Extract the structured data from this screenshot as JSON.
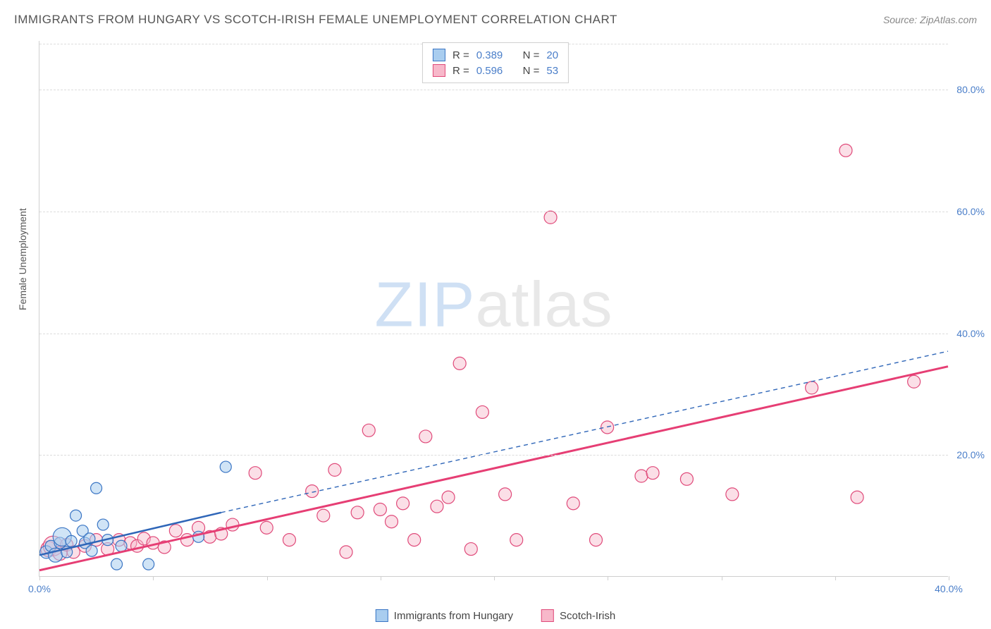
{
  "title": "IMMIGRANTS FROM HUNGARY VS SCOTCH-IRISH FEMALE UNEMPLOYMENT CORRELATION CHART",
  "source": "Source: ZipAtlas.com",
  "ylabel": "Female Unemployment",
  "watermark_zip": "ZIP",
  "watermark_atlas": "atlas",
  "chart": {
    "type": "scatter",
    "xlim": [
      0,
      40
    ],
    "ylim": [
      0,
      88
    ],
    "yticks": [
      20,
      40,
      60,
      80
    ],
    "ytick_labels": [
      "20.0%",
      "40.0%",
      "60.0%",
      "80.0%"
    ],
    "xticks": [
      0,
      5,
      10,
      15,
      20,
      25,
      30,
      35,
      40
    ],
    "xtick_labels_shown": {
      "0": "0.0%",
      "40": "40.0%"
    },
    "grid_color": "#dcdcdc",
    "background_color": "#ffffff",
    "axis_color": "#cfcfcf",
    "tick_label_color": "#4a7ec9",
    "label_fontsize": 14
  },
  "series": {
    "hungary": {
      "label": "Immigrants from Hungary",
      "fill_color": "#a9cdef",
      "fill_opacity": 0.55,
      "stroke_color": "#3a75c4",
      "marker_radius_base": 8,
      "R": "0.389",
      "N": "20",
      "line": {
        "x1": 0,
        "y1": 3.5,
        "x2": 8,
        "y2": 10.5,
        "dash_x2": 40,
        "dash_y2": 37,
        "color": "#2f66b8",
        "width": 2.5
      },
      "points": [
        {
          "x": 0.3,
          "y": 4.0,
          "r": 9
        },
        {
          "x": 0.5,
          "y": 5.0,
          "r": 8
        },
        {
          "x": 0.7,
          "y": 3.5,
          "r": 10
        },
        {
          "x": 0.9,
          "y": 5.5,
          "r": 8
        },
        {
          "x": 1.0,
          "y": 6.5,
          "r": 13
        },
        {
          "x": 1.2,
          "y": 4.0,
          "r": 8
        },
        {
          "x": 1.4,
          "y": 5.8,
          "r": 8
        },
        {
          "x": 1.6,
          "y": 10.0,
          "r": 8
        },
        {
          "x": 1.9,
          "y": 7.5,
          "r": 8
        },
        {
          "x": 2.0,
          "y": 5.5,
          "r": 8
        },
        {
          "x": 2.2,
          "y": 6.2,
          "r": 8
        },
        {
          "x": 2.3,
          "y": 4.2,
          "r": 8
        },
        {
          "x": 2.5,
          "y": 14.5,
          "r": 8
        },
        {
          "x": 2.8,
          "y": 8.5,
          "r": 8
        },
        {
          "x": 3.0,
          "y": 6.0,
          "r": 8
        },
        {
          "x": 3.4,
          "y": 2.0,
          "r": 8
        },
        {
          "x": 3.6,
          "y": 5.0,
          "r": 8
        },
        {
          "x": 4.8,
          "y": 2.0,
          "r": 8
        },
        {
          "x": 7.0,
          "y": 6.5,
          "r": 8
        },
        {
          "x": 8.2,
          "y": 18.0,
          "r": 8
        }
      ]
    },
    "scotch_irish": {
      "label": "Scotch-Irish",
      "fill_color": "#f7b8ca",
      "fill_opacity": 0.45,
      "stroke_color": "#e04a7a",
      "marker_radius_base": 9,
      "R": "0.596",
      "N": "53",
      "line": {
        "x1": 0,
        "y1": 1.0,
        "x2": 40,
        "y2": 34.5,
        "color": "#e63e74",
        "width": 3
      },
      "points": [
        {
          "x": 0.4,
          "y": 4.5,
          "r": 11
        },
        {
          "x": 0.6,
          "y": 5.0,
          "r": 14
        },
        {
          "x": 0.9,
          "y": 3.8,
          "r": 10
        },
        {
          "x": 1.2,
          "y": 5.2,
          "r": 9
        },
        {
          "x": 1.5,
          "y": 4.0,
          "r": 9
        },
        {
          "x": 2.0,
          "y": 5.0,
          "r": 9
        },
        {
          "x": 2.5,
          "y": 6.0,
          "r": 9
        },
        {
          "x": 3.0,
          "y": 4.5,
          "r": 9
        },
        {
          "x": 3.5,
          "y": 6.0,
          "r": 9
        },
        {
          "x": 4.0,
          "y": 5.5,
          "r": 9
        },
        {
          "x": 4.3,
          "y": 5.0,
          "r": 9
        },
        {
          "x": 4.6,
          "y": 6.2,
          "r": 9
        },
        {
          "x": 5.0,
          "y": 5.5,
          "r": 9
        },
        {
          "x": 5.5,
          "y": 4.8,
          "r": 9
        },
        {
          "x": 6.0,
          "y": 7.5,
          "r": 9
        },
        {
          "x": 6.5,
          "y": 6.0,
          "r": 9
        },
        {
          "x": 7.0,
          "y": 8.0,
          "r": 9
        },
        {
          "x": 7.5,
          "y": 6.5,
          "r": 9
        },
        {
          "x": 8.0,
          "y": 7.0,
          "r": 9
        },
        {
          "x": 8.5,
          "y": 8.5,
          "r": 9
        },
        {
          "x": 9.5,
          "y": 17.0,
          "r": 9
        },
        {
          "x": 10.0,
          "y": 8.0,
          "r": 9
        },
        {
          "x": 11.0,
          "y": 6.0,
          "r": 9
        },
        {
          "x": 12.0,
          "y": 14.0,
          "r": 9
        },
        {
          "x": 12.5,
          "y": 10.0,
          "r": 9
        },
        {
          "x": 13.0,
          "y": 17.5,
          "r": 9
        },
        {
          "x": 13.5,
          "y": 4.0,
          "r": 9
        },
        {
          "x": 14.0,
          "y": 10.5,
          "r": 9
        },
        {
          "x": 14.5,
          "y": 24.0,
          "r": 9
        },
        {
          "x": 15.0,
          "y": 11.0,
          "r": 9
        },
        {
          "x": 15.5,
          "y": 9.0,
          "r": 9
        },
        {
          "x": 16.0,
          "y": 12.0,
          "r": 9
        },
        {
          "x": 16.5,
          "y": 6.0,
          "r": 9
        },
        {
          "x": 17.0,
          "y": 23.0,
          "r": 9
        },
        {
          "x": 17.5,
          "y": 11.5,
          "r": 9
        },
        {
          "x": 18.0,
          "y": 13.0,
          "r": 9
        },
        {
          "x": 18.5,
          "y": 35.0,
          "r": 9
        },
        {
          "x": 19.0,
          "y": 4.5,
          "r": 9
        },
        {
          "x": 19.5,
          "y": 27.0,
          "r": 9
        },
        {
          "x": 20.5,
          "y": 13.5,
          "r": 9
        },
        {
          "x": 21.0,
          "y": 6.0,
          "r": 9
        },
        {
          "x": 22.5,
          "y": 59.0,
          "r": 9
        },
        {
          "x": 23.5,
          "y": 12.0,
          "r": 9
        },
        {
          "x": 24.5,
          "y": 6.0,
          "r": 9
        },
        {
          "x": 25.0,
          "y": 24.5,
          "r": 9
        },
        {
          "x": 26.5,
          "y": 16.5,
          "r": 9
        },
        {
          "x": 27.0,
          "y": 17.0,
          "r": 9
        },
        {
          "x": 28.5,
          "y": 16.0,
          "r": 9
        },
        {
          "x": 30.5,
          "y": 13.5,
          "r": 9
        },
        {
          "x": 34.0,
          "y": 31.0,
          "r": 9
        },
        {
          "x": 35.5,
          "y": 70.0,
          "r": 9
        },
        {
          "x": 36.0,
          "y": 13.0,
          "r": 9
        },
        {
          "x": 38.5,
          "y": 32.0,
          "r": 9
        }
      ]
    }
  },
  "legend_top": {
    "r_label": "R =",
    "n_label": "N ="
  },
  "legend_bottom": {
    "items": [
      "hungary",
      "scotch_irish"
    ]
  }
}
